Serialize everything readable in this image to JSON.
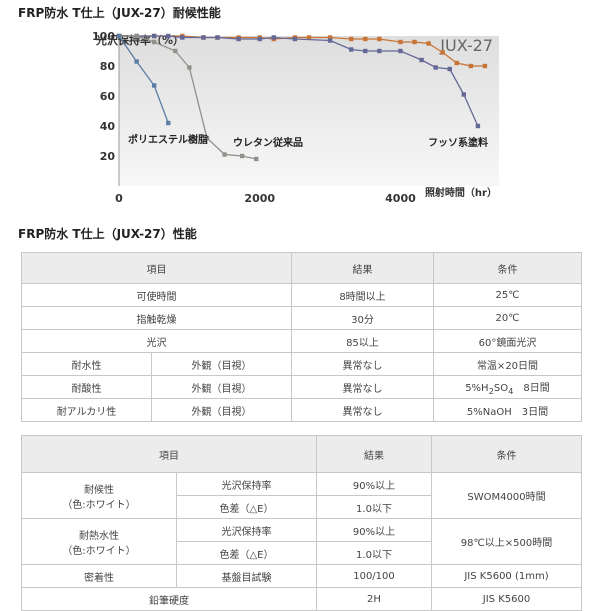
{
  "headings": {
    "weather": "FRP防水 T仕上（JUX-27）耐候性能",
    "performance": "FRP防水 T仕上（JUX-27）性能"
  },
  "chart_data": {
    "type": "line",
    "title": "JUX-27",
    "ylabel": "光沢保持率（%）",
    "xlabel": "照射時間（hr）",
    "xlim": [
      0,
      5400
    ],
    "ylim": [
      0,
      100
    ],
    "xticks": [
      "0",
      "2000",
      "4000"
    ],
    "yticks": [
      "100",
      "80",
      "60",
      "40",
      "20"
    ],
    "grid": false,
    "series": [
      {
        "name": "ポリエステル樹脂",
        "color": "#5b7ea3",
        "x": [
          0,
          250,
          500,
          700
        ],
        "y": [
          100,
          83,
          67,
          42
        ]
      },
      {
        "name": "ウレタン従来品",
        "color": "#8e938a",
        "x": [
          0,
          250,
          500,
          800,
          1000,
          1250,
          1500,
          1750,
          1950
        ],
        "y": [
          100,
          100,
          96,
          90,
          79,
          32,
          21,
          20,
          18
        ]
      },
      {
        "name": "フッソ系塗料",
        "color": "#646897",
        "x": [
          0,
          250,
          500,
          700,
          900,
          1200,
          1400,
          1700,
          2000,
          2200,
          2500,
          3000,
          3300,
          3500,
          3700,
          4000,
          4300,
          4500,
          4700,
          4900,
          5100
        ],
        "y": [
          100,
          100,
          100,
          100,
          99,
          99,
          99,
          98,
          98,
          99,
          98,
          97,
          91,
          90,
          90,
          90,
          84,
          79,
          78,
          61,
          40
        ]
      },
      {
        "color": "#c87436",
        "x": [
          0,
          500,
          900,
          1200,
          1400,
          1700,
          2000,
          2200,
          2500,
          2700,
          3000,
          3300,
          3500,
          3700,
          4000,
          4200,
          4400,
          4600,
          4800,
          5000,
          5200
        ],
        "y": [
          100,
          100,
          100,
          99,
          99,
          99,
          99,
          98,
          99,
          99,
          99,
          98,
          98,
          98,
          96,
          96,
          95,
          89,
          82,
          80,
          80
        ]
      }
    ]
  },
  "table1": {
    "headers": [
      "項目",
      "結果",
      "条件"
    ],
    "rows": [
      {
        "item": "可使時間",
        "result": "8時間以上",
        "cond": "25℃"
      },
      {
        "item": "指触乾燥",
        "result": "30分",
        "cond": "20℃"
      },
      {
        "item": "光沢",
        "result": "85以上",
        "cond": "60°鏡面光沢"
      }
    ],
    "rows2": [
      {
        "item": "耐水性",
        "sub": "外観（目視）",
        "result": "異常なし",
        "cond": "常温×20日間"
      },
      {
        "item": "耐酸性",
        "sub": "外観（目視）",
        "result": "異常なし",
        "cond_pre": "5%H",
        "cond_sub1": "2",
        "cond_mid": "SO",
        "cond_sub2": "4",
        "cond_post": "　8日間"
      },
      {
        "item": "耐アルカリ性",
        "sub": "外観（目視）",
        "result": "異常なし",
        "cond": "5%NaOH　3日間"
      }
    ]
  },
  "table2": {
    "headers": [
      "項目",
      "結果",
      "条件"
    ],
    "weather": {
      "item_line1": "耐候性",
      "item_line2": "（色:ホワイト）",
      "sub1": "光沢保持率",
      "res1": "90%以上",
      "sub2": "色差（△E）",
      "res2": "1.0以下",
      "cond": "SWOM4000時間"
    },
    "heat": {
      "item_line1": "耐熱水性",
      "item_line2": "（色:ホワイト）",
      "sub1": "光沢保持率",
      "res1": "90%以上",
      "sub2": "色差（△E）",
      "res2": "1.0以下",
      "cond": "98℃以上×500時間"
    },
    "adhesion": {
      "item": "密着性",
      "sub": "基盤目試験",
      "result": "100/100",
      "cond": "JIS K5600 (1mm)"
    },
    "hardness": {
      "item": "鉛筆硬度",
      "result": "2H",
      "cond": "JIS K5600"
    }
  }
}
